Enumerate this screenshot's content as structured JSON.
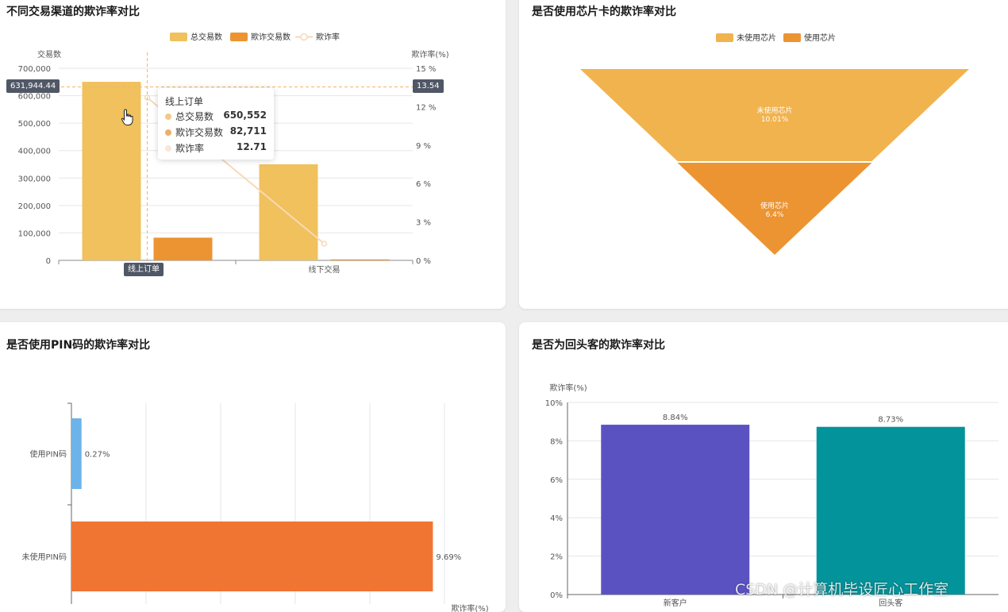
{
  "chart_data": [
    {
      "type": "bar",
      "title": "不同交易渠道的欺诈率对比",
      "categories": [
        "线上订单",
        "线下交易"
      ],
      "series": [
        {
          "name": "总交易数",
          "kind": "bar",
          "axis": "left",
          "color": "#f0c15c",
          "values": [
            650552,
            350000
          ]
        },
        {
          "name": "欺诈交易数",
          "kind": "bar",
          "axis": "left",
          "color": "#ec9432",
          "values": [
            82711,
            3500
          ]
        },
        {
          "name": "欺诈率",
          "kind": "line",
          "axis": "right",
          "color": "#f7d9b8",
          "values": [
            12.71,
            1.3
          ]
        }
      ],
      "ylabel_left": "交易数",
      "ylabel_right": "欺诈率(%)",
      "yticks_left": [
        "0",
        "100,000",
        "200,000",
        "300,000",
        "400,000",
        "500,000",
        "600,000",
        "700,000"
      ],
      "yticks_right": [
        "0 %",
        "3 %",
        "6 %",
        "9 %",
        "12 %",
        "15 %"
      ],
      "ylim_left": [
        0,
        700000
      ],
      "ylim_right": [
        0,
        15
      ],
      "crosshair": {
        "left_label": "631,944.44",
        "right_label": "13.54",
        "left_value": 631944.44,
        "active_category": "线上订单"
      },
      "tooltip": {
        "title": "线上订单",
        "rows": [
          {
            "name": "总交易数",
            "value": "650,552",
            "color": "#f4c987"
          },
          {
            "name": "欺诈交易数",
            "value": "82,711",
            "color": "#edae6d"
          },
          {
            "name": "欺诈率",
            "value": "12.71",
            "color": "#f9e6d6"
          }
        ]
      }
    },
    {
      "type": "funnel",
      "title": "是否使用芯片卡的欺诈率对比",
      "legend": [
        "未使用芯片",
        "使用芯片"
      ],
      "colors": [
        "#f1b34e",
        "#ec9432"
      ],
      "slices": [
        {
          "name": "未使用芯片",
          "value": 10.01,
          "label": "10.01%"
        },
        {
          "name": "使用芯片",
          "value": 6.4,
          "label": "6.4%"
        }
      ]
    },
    {
      "type": "bar",
      "orientation": "horizontal",
      "title": "是否使用PIN码的欺诈率对比",
      "categories": [
        "使用PIN码",
        "未使用PIN码"
      ],
      "values": [
        0.27,
        9.69
      ],
      "labels": [
        "0.27%",
        "9.69%"
      ],
      "colors": [
        "#6bb3e8",
        "#f07533"
      ],
      "xlim": [
        0,
        10
      ],
      "xlabel": "欺诈率(%)"
    },
    {
      "type": "bar",
      "title": "是否为回头客的欺诈率对比",
      "categories": [
        "新客户",
        "回头客"
      ],
      "values": [
        8.84,
        8.73
      ],
      "labels": [
        "8.84%",
        "8.73%"
      ],
      "colors": [
        "#5b52c2",
        "#03939a"
      ],
      "ylabel": "欺诈率(%)",
      "yticks": [
        "0%",
        "2%",
        "4%",
        "6%",
        "8%",
        "10%"
      ],
      "ylim": [
        0,
        10
      ]
    }
  ],
  "watermark": "CSDN @计算机毕设匠心工作室"
}
